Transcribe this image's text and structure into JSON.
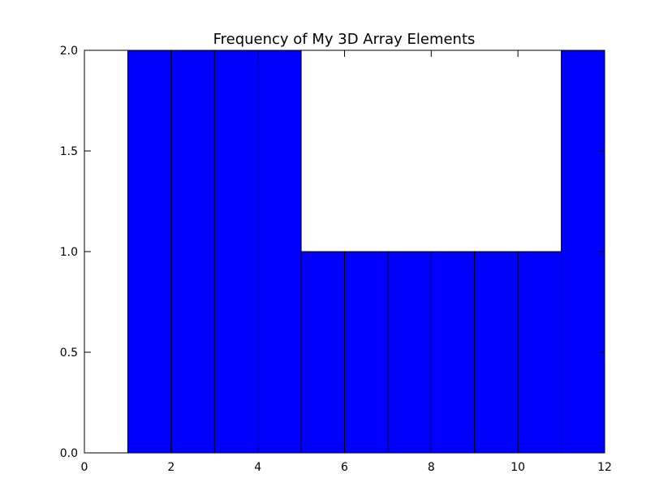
{
  "chart_data": {
    "type": "bar",
    "title": "Frequency of My 3D Array Elements",
    "xlabel": "",
    "ylabel": "",
    "bins": [
      [
        0,
        1
      ],
      [
        1,
        2
      ],
      [
        2,
        3
      ],
      [
        3,
        4
      ],
      [
        4,
        5
      ],
      [
        5,
        6
      ],
      [
        6,
        7
      ],
      [
        7,
        8
      ],
      [
        8,
        9
      ],
      [
        9,
        10
      ],
      [
        10,
        11
      ],
      [
        11,
        12
      ]
    ],
    "values": [
      0,
      2,
      2,
      2,
      2,
      1,
      1,
      1,
      1,
      1,
      1,
      2
    ],
    "xlim": [
      0,
      12
    ],
    "ylim": [
      0,
      2.0
    ],
    "xticks": [
      "0",
      "2",
      "4",
      "6",
      "8",
      "10",
      "12"
    ],
    "yticks": [
      "0.0",
      "0.5",
      "1.0",
      "1.5",
      "2.0"
    ],
    "bar_color": "#0000ff",
    "edge_color": "#000000",
    "grid": false,
    "legend": "none"
  }
}
